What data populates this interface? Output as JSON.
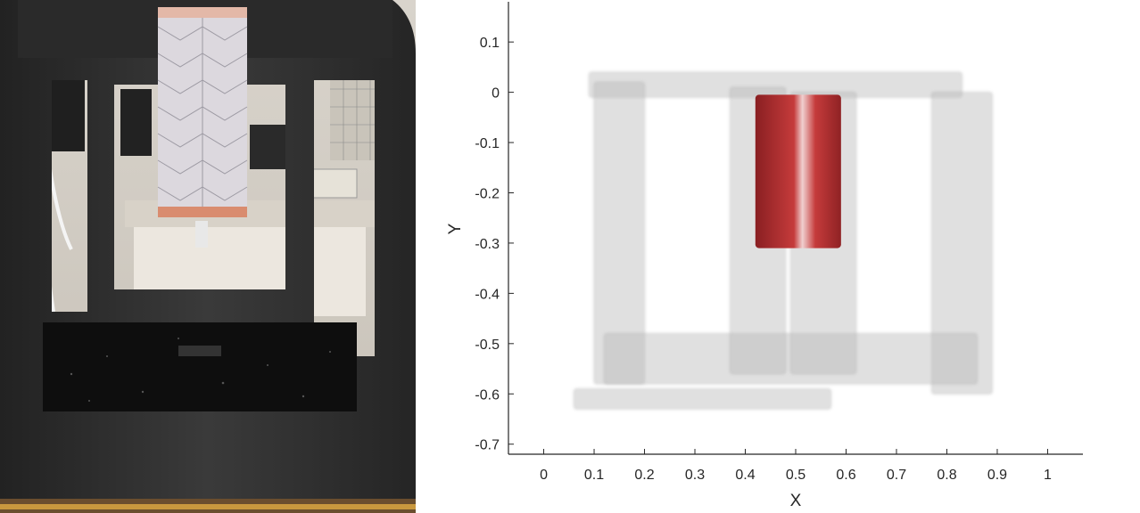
{
  "photo": {
    "description_icon": "chamber-photo",
    "frame_color": "#2b2b2b"
  },
  "chart_data": {
    "type": "scatter",
    "subtype": "3d-reconstruction-top-view",
    "title": "",
    "xlabel": "X",
    "ylabel": "Y",
    "xlim": [
      -0.07,
      1.07
    ],
    "ylim": [
      -0.72,
      0.18
    ],
    "xticks": [
      0,
      0.1,
      0.2,
      0.3,
      0.4,
      0.5,
      0.6,
      0.7,
      0.8,
      0.9,
      1
    ],
    "xtick_labels": [
      "0",
      "0.1",
      "0.2",
      "0.3",
      "0.4",
      "0.5",
      "0.6",
      "0.7",
      "0.8",
      "0.9",
      "1"
    ],
    "yticks": [
      0.1,
      0,
      -0.1,
      -0.2,
      -0.3,
      -0.4,
      -0.5,
      -0.6,
      -0.7
    ],
    "ytick_labels": [
      "0.1",
      "0",
      "-0.1",
      "-0.2",
      "-0.3",
      "-0.4",
      "-0.5",
      "-0.6",
      "-0.7"
    ],
    "grid": false,
    "series": [
      {
        "color": "#b4b4b4",
        "regions": [
          {
            "x": [
              0.09,
              0.83
            ],
            "y": [
              0.04,
              -0.01
            ]
          },
          {
            "x": [
              0.1,
              0.2
            ],
            "y": [
              0.02,
              -0.58
            ]
          },
          {
            "x": [
              0.77,
              0.89
            ],
            "y": [
              0.0,
              -0.6
            ]
          },
          {
            "x": [
              0.12,
              0.86
            ],
            "y": [
              -0.48,
              -0.58
            ]
          },
          {
            "x": [
              0.06,
              0.57
            ],
            "y": [
              -0.59,
              -0.63
            ]
          },
          {
            "x": [
              0.37,
              0.48
            ],
            "y": [
              0.01,
              -0.56
            ]
          },
          {
            "x": [
              0.49,
              0.62
            ],
            "y": [
              0.0,
              -0.56
            ]
          }
        ]
      },
      {
        "color": "#a8272a",
        "regions": [
          {
            "x": [
              0.42,
              0.59
            ],
            "y": [
              -0.005,
              -0.31
            ]
          }
        ]
      }
    ]
  }
}
